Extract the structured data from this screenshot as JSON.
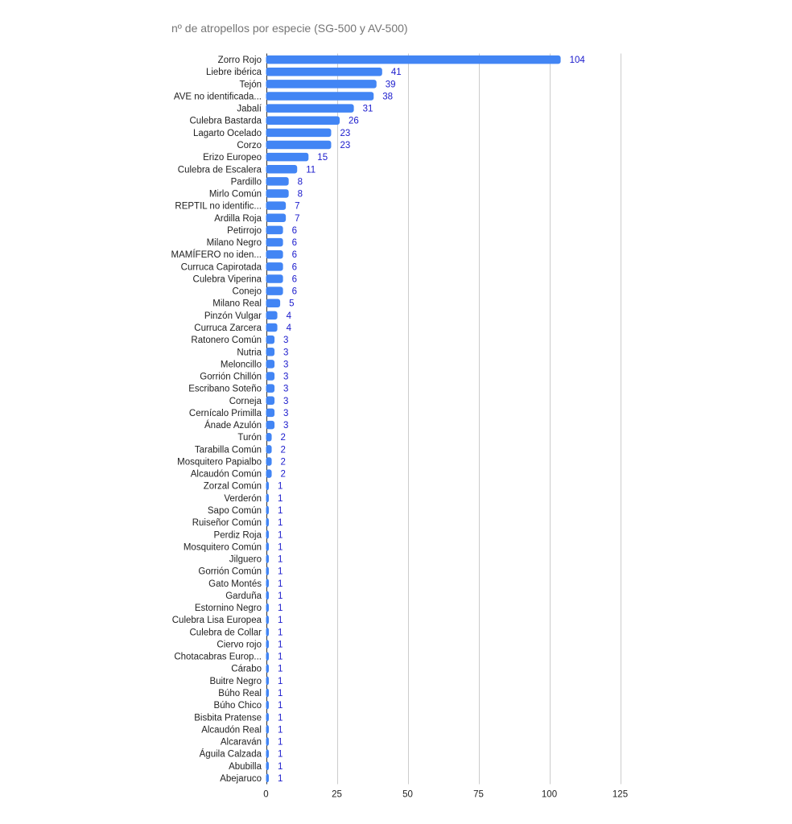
{
  "chart_data": {
    "type": "bar",
    "orientation": "horizontal",
    "title": "nº de atropellos por especie (SG-500 y AV-500)",
    "xlabel": "",
    "ylabel": "",
    "xlim": [
      0,
      125
    ],
    "ticks": [
      0,
      25,
      50,
      75,
      100,
      125
    ],
    "grid": true,
    "legend": "none",
    "bar_color": "#4285f4",
    "value_label_color": "#1a1acc",
    "categories": [
      "Zorro Rojo",
      "Liebre ibérica",
      "Tejón",
      "AVE no identificada...",
      "Jabalí",
      "Culebra Bastarda",
      "Lagarto Ocelado",
      "Corzo",
      "Erizo Europeo",
      "Culebra de Escalera",
      "Pardillo",
      "Mirlo Común",
      "REPTIL no identific...",
      "Ardilla Roja",
      "Petirrojo",
      "Milano Negro",
      "MAMÍFERO no iden...",
      "Curruca Capirotada",
      "Culebra Viperina",
      "Conejo",
      "Milano Real",
      "Pinzón Vulgar",
      "Curruca Zarcera",
      "Ratonero Común",
      "Nutria",
      "Meloncillo",
      "Gorrión Chillón",
      "Escribano Soteño",
      "Corneja",
      "Cernícalo Primilla",
      "Ánade Azulón",
      "Turón",
      "Tarabilla Común",
      "Mosquitero Papialbo",
      "Alcaudón Común",
      "Zorzal Común",
      "Verderón",
      "Sapo Común",
      "Ruiseñor Común",
      "Perdiz Roja",
      "Mosquitero Común",
      "Jilguero",
      "Gorrión Común",
      "Gato Montés",
      "Garduña",
      "Estornino Negro",
      "Culebra Lisa Europea",
      "Culebra de Collar",
      "Ciervo rojo",
      "Chotacabras Europ...",
      "Cárabo",
      "Buitre Negro",
      "Búho Real",
      "Búho Chico",
      "Bisbita Pratense",
      "Alcaudón Real",
      "Alcaraván",
      "Águila Calzada",
      "Abubilla",
      "Abejaruco"
    ],
    "values": [
      104,
      41,
      39,
      38,
      31,
      26,
      23,
      23,
      15,
      11,
      8,
      8,
      7,
      7,
      6,
      6,
      6,
      6,
      6,
      6,
      5,
      4,
      4,
      3,
      3,
      3,
      3,
      3,
      3,
      3,
      3,
      2,
      2,
      2,
      2,
      1,
      1,
      1,
      1,
      1,
      1,
      1,
      1,
      1,
      1,
      1,
      1,
      1,
      1,
      1,
      1,
      1,
      1,
      1,
      1,
      1,
      1,
      1,
      1,
      1
    ]
  }
}
